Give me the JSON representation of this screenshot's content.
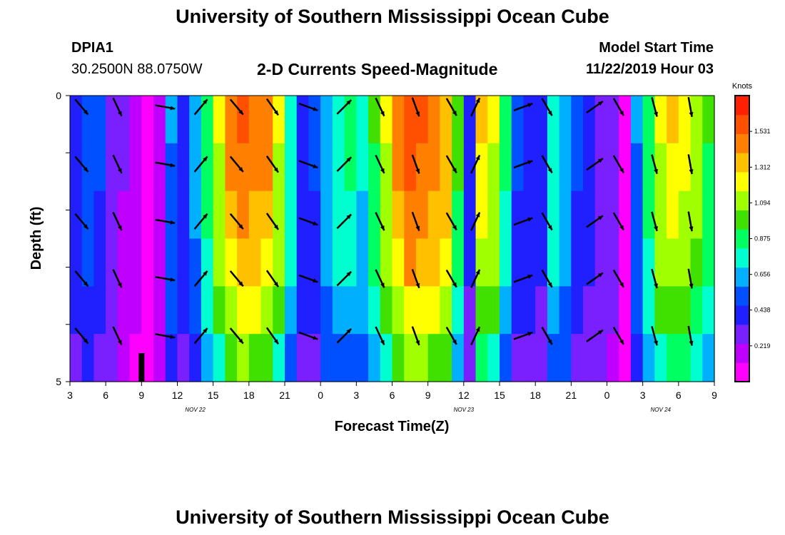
{
  "header": {
    "title": "University of Southern Mississippi Ocean Cube",
    "station_id": "DPIA1",
    "station_coords": "30.2500N 88.0750W",
    "subtitle": "2-D Currents Speed-Magnitude",
    "model_start_label": "Model Start Time",
    "model_start_value": "11/22/2019 Hour 03"
  },
  "footer": {
    "title": "University of Southern Mississippi Ocean Cube"
  },
  "colors": {
    "scale": [
      "#ff00ff",
      "#c000ff",
      "#7a20ff",
      "#2020ff",
      "#0050ff",
      "#00b0ff",
      "#00ffd0",
      "#00ff60",
      "#40e000",
      "#a0ff00",
      "#ffff00",
      "#ffc000",
      "#ff8000",
      "#ff5000",
      "#ff2000"
    ],
    "arrow": "#000000"
  },
  "chart_data": {
    "type": "heatmap",
    "title": "2-D Currents Speed-Magnitude",
    "xlabel": "Forecast Time(Z)",
    "ylabel": "Depth (ft)",
    "x_tick_labels": [
      "3",
      "6",
      "9",
      "12",
      "15",
      "18",
      "21",
      "0",
      "3",
      "6",
      "9",
      "12",
      "15",
      "18",
      "21",
      "0",
      "3",
      "6",
      "9"
    ],
    "x_range_hours": [
      0,
      54
    ],
    "date_labels": [
      {
        "text": "NOV 22",
        "at_hour": 10.5
      },
      {
        "text": "NOV 23",
        "at_hour": 33
      },
      {
        "text": "NOV 24",
        "at_hour": 49.5
      }
    ],
    "y_tick_labels": [
      "0",
      "5"
    ],
    "ylim": [
      0,
      5
    ],
    "depth_layers": 5,
    "colorbar": {
      "title": "Knots",
      "ticks": [
        "1.531",
        "1.312",
        "1.094",
        "0.875",
        "0.656",
        "0.438",
        "0.219"
      ],
      "range": [
        0,
        1.75
      ]
    },
    "speed_profile_hours": [
      0,
      1,
      2,
      3,
      4,
      5,
      6,
      7,
      8,
      9,
      10,
      11,
      12,
      13,
      14,
      15,
      16,
      17,
      18,
      19,
      20,
      21,
      22,
      23,
      24,
      25,
      26,
      27,
      28,
      29,
      30,
      31,
      32,
      33,
      34,
      35,
      36,
      37,
      38,
      39,
      40,
      41,
      42,
      43,
      44,
      45,
      46,
      47,
      48,
      49,
      50,
      51,
      52,
      53,
      54
    ],
    "speed_profile_knots": [
      0.45,
      0.55,
      0.5,
      0.35,
      0.25,
      0.15,
      0.1,
      0.2,
      0.6,
      0.45,
      0.65,
      0.9,
      1.2,
      1.45,
      1.55,
      1.5,
      1.45,
      1.2,
      0.8,
      0.45,
      0.5,
      0.7,
      0.8,
      0.85,
      0.75,
      0.95,
      1.2,
      1.45,
      1.6,
      1.55,
      1.5,
      1.4,
      1.0,
      0.4,
      1.3,
      1.2,
      0.85,
      0.5,
      0.45,
      0.4,
      0.8,
      0.7,
      0.5,
      0.4,
      0.35,
      0.3,
      0.1,
      0.6,
      0.9,
      1.2,
      1.3,
      1.25,
      1.15,
      0.95,
      0.45
    ],
    "depth_factors": [
      1.0,
      0.97,
      0.93,
      0.88,
      0.8,
      0.68
    ],
    "arrows": [
      {
        "hour": 0.5,
        "dir_deg": 140
      },
      {
        "hour": 3.5,
        "dir_deg": 155
      },
      {
        "hour": 7.5,
        "dir_deg": 100
      },
      {
        "hour": 10.5,
        "dir_deg": 40
      },
      {
        "hour": 13.5,
        "dir_deg": 140
      },
      {
        "hour": 16.5,
        "dir_deg": 145
      },
      {
        "hour": 19.5,
        "dir_deg": 110
      },
      {
        "hour": 22.5,
        "dir_deg": 45
      },
      {
        "hour": 25.5,
        "dir_deg": 155
      },
      {
        "hour": 28.5,
        "dir_deg": 160
      },
      {
        "hour": 31.5,
        "dir_deg": 150
      },
      {
        "hour": 33.5,
        "dir_deg": 25
      },
      {
        "hour": 37.5,
        "dir_deg": 70
      },
      {
        "hour": 39.5,
        "dir_deg": 150
      },
      {
        "hour": 43.5,
        "dir_deg": 55
      },
      {
        "hour": 45.5,
        "dir_deg": 150
      },
      {
        "hour": 48.5,
        "dir_deg": 165
      },
      {
        "hour": 51.5,
        "dir_deg": 170
      }
    ]
  }
}
